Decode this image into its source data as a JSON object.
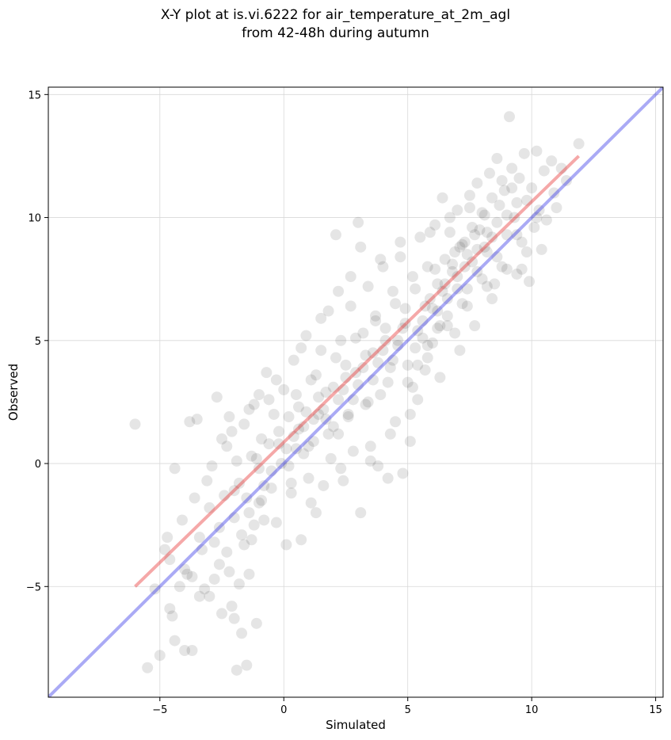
{
  "chart_data": {
    "type": "scatter",
    "title_lines": [
      "X-Y plot at is.vi.6222 for air_temperature_at_2m_agl",
      "from 42-48h during autumn"
    ],
    "xlabel": "Simulated",
    "ylabel": "Observed",
    "xlim": [
      -9.5,
      15.3
    ],
    "ylim": [
      -9.5,
      15.3
    ],
    "xticks": [
      -5,
      0,
      5,
      10,
      15
    ],
    "yticks": [
      -5,
      0,
      5,
      10,
      15
    ],
    "tick_labels": [
      "−5",
      "0",
      "5",
      "10",
      "15"
    ],
    "grid": true,
    "point_color": "#000000",
    "point_opacity": 0.1,
    "lines": [
      {
        "role": "fit",
        "color": "#e83030",
        "x": [
          -6.0,
          11.9
        ],
        "y": [
          -5.0,
          12.5
        ]
      },
      {
        "role": "one-to-one",
        "color": "#3535e8",
        "x": [
          -9.5,
          15.3
        ],
        "y": [
          -9.5,
          15.3
        ]
      }
    ],
    "points": [
      [
        -6.0,
        1.6
      ],
      [
        -5.5,
        -8.3
      ],
      [
        -5.2,
        -5.1
      ],
      [
        -5.0,
        -7.8
      ],
      [
        -4.8,
        -3.5
      ],
      [
        -4.7,
        -3.0
      ],
      [
        -4.6,
        -5.9
      ],
      [
        -4.5,
        -6.2
      ],
      [
        -4.4,
        -7.2
      ],
      [
        -4.4,
        -0.2
      ],
      [
        -4.2,
        -5.0
      ],
      [
        -4.0,
        -4.3
      ],
      [
        -4.0,
        -7.6
      ],
      [
        -3.9,
        -4.5
      ],
      [
        -3.8,
        1.7
      ],
      [
        -3.7,
        -7.6
      ],
      [
        -3.6,
        -1.4
      ],
      [
        -3.5,
        1.8
      ],
      [
        -3.4,
        -5.4
      ],
      [
        -3.3,
        -3.5
      ],
      [
        -3.2,
        -5.1
      ],
      [
        -3.1,
        -0.7
      ],
      [
        -3.0,
        -5.4
      ],
      [
        -2.9,
        -0.1
      ],
      [
        -2.8,
        -4.7
      ],
      [
        -2.6,
        -4.1
      ],
      [
        -2.5,
        1.0
      ],
      [
        -2.5,
        -6.1
      ],
      [
        -2.4,
        -1.3
      ],
      [
        -2.3,
        -3.6
      ],
      [
        -2.2,
        -4.4
      ],
      [
        -2.1,
        -5.8
      ],
      [
        -2.0,
        -6.3
      ],
      [
        -2.0,
        -2.2
      ],
      [
        -1.9,
        -8.4
      ],
      [
        -1.8,
        -4.9
      ],
      [
        -1.7,
        -6.9
      ],
      [
        -1.6,
        -3.3
      ],
      [
        -1.5,
        -8.2
      ],
      [
        -1.4,
        -4.5
      ],
      [
        -1.3,
        -3.1
      ],
      [
        -1.2,
        -2.5
      ],
      [
        -1.1,
        -6.5
      ],
      [
        -1.0,
        -1.6
      ],
      [
        -2.7,
        2.7
      ],
      [
        -2.3,
        0.7
      ],
      [
        -2.1,
        1.3
      ],
      [
        -1.9,
        0.1
      ],
      [
        -1.8,
        -0.8
      ],
      [
        -1.6,
        1.6
      ],
      [
        -1.5,
        -1.4
      ],
      [
        -1.3,
        0.3
      ],
      [
        -1.2,
        2.4
      ],
      [
        -1.0,
        -0.2
      ],
      [
        -0.9,
        1.0
      ],
      [
        -0.8,
        -2.3
      ],
      [
        -0.7,
        3.7
      ],
      [
        -0.6,
        0.8
      ],
      [
        -0.5,
        -1.0
      ],
      [
        -0.4,
        2.0
      ],
      [
        -0.3,
        -2.4
      ],
      [
        -0.2,
        1.3
      ],
      [
        -0.1,
        0.0
      ],
      [
        0.0,
        3.0
      ],
      [
        0.1,
        -3.3
      ],
      [
        0.2,
        1.9
      ],
      [
        0.3,
        -0.8
      ],
      [
        0.4,
        4.2
      ],
      [
        0.5,
        0.6
      ],
      [
        0.6,
        2.3
      ],
      [
        0.7,
        -3.1
      ],
      [
        0.8,
        1.5
      ],
      [
        0.9,
        5.2
      ],
      [
        1.0,
        -0.6
      ],
      [
        1.1,
        3.4
      ],
      [
        1.2,
        0.9
      ],
      [
        1.3,
        -2.0
      ],
      [
        1.4,
        2.7
      ],
      [
        1.5,
        4.6
      ],
      [
        1.6,
        -0.9
      ],
      [
        1.7,
        1.8
      ],
      [
        1.8,
        6.2
      ],
      [
        1.9,
        0.2
      ],
      [
        2.0,
        3.1
      ],
      [
        2.1,
        9.3
      ],
      [
        2.2,
        1.2
      ],
      [
        2.3,
        5.0
      ],
      [
        2.4,
        -0.7
      ],
      [
        2.5,
        4.0
      ],
      [
        2.6,
        2.0
      ],
      [
        2.7,
        6.4
      ],
      [
        2.8,
        0.5
      ],
      [
        2.9,
        3.7
      ],
      [
        3.0,
        9.8
      ],
      [
        3.1,
        -2.0
      ],
      [
        3.2,
        5.3
      ],
      [
        3.3,
        2.4
      ],
      [
        3.4,
        7.2
      ],
      [
        3.5,
        0.7
      ],
      [
        3.6,
        4.5
      ],
      [
        3.7,
        6.0
      ],
      [
        3.8,
        -0.1
      ],
      [
        3.9,
        2.8
      ],
      [
        4.0,
        8.0
      ],
      [
        4.1,
        5.5
      ],
      [
        4.2,
        -0.6
      ],
      [
        4.3,
        3.9
      ],
      [
        4.4,
        7.0
      ],
      [
        4.5,
        1.7
      ],
      [
        4.6,
        5.0
      ],
      [
        4.7,
        8.4
      ],
      [
        4.8,
        -0.4
      ],
      [
        4.9,
        6.3
      ],
      [
        5.0,
        3.3
      ],
      [
        5.1,
        0.9
      ],
      [
        5.2,
        7.6
      ],
      [
        5.3,
        4.7
      ],
      [
        5.4,
        2.6
      ],
      [
        5.5,
        9.2
      ],
      [
        5.6,
        5.8
      ],
      [
        5.7,
        3.8
      ],
      [
        5.8,
        8.0
      ],
      [
        5.9,
        6.7
      ],
      [
        6.0,
        4.9
      ],
      [
        6.1,
        9.7
      ],
      [
        6.2,
        7.3
      ],
      [
        6.3,
        5.6
      ],
      [
        6.4,
        10.8
      ],
      [
        6.5,
        8.3
      ],
      [
        6.6,
        6.0
      ],
      [
        6.7,
        9.4
      ],
      [
        6.8,
        7.8
      ],
      [
        6.9,
        5.3
      ],
      [
        7.0,
        10.3
      ],
      [
        7.1,
        8.8
      ],
      [
        7.2,
        6.5
      ],
      [
        7.3,
        9.0
      ],
      [
        7.4,
        7.1
      ],
      [
        7.5,
        10.9
      ],
      [
        7.6,
        8.2
      ],
      [
        7.7,
        5.6
      ],
      [
        7.8,
        11.4
      ],
      [
        7.9,
        9.5
      ],
      [
        8.0,
        7.5
      ],
      [
        8.1,
        10.1
      ],
      [
        8.2,
        8.6
      ],
      [
        8.3,
        11.8
      ],
      [
        8.4,
        9.2
      ],
      [
        8.5,
        7.3
      ],
      [
        8.6,
        12.4
      ],
      [
        8.7,
        10.5
      ],
      [
        8.8,
        8.0
      ],
      [
        8.9,
        11.1
      ],
      [
        9.0,
        9.3
      ],
      [
        9.1,
        14.1
      ],
      [
        9.2,
        12.0
      ],
      [
        9.3,
        10.0
      ],
      [
        9.4,
        7.7
      ],
      [
        9.5,
        11.6
      ],
      [
        9.6,
        9.0
      ],
      [
        9.7,
        12.6
      ],
      [
        9.8,
        10.7
      ],
      [
        9.9,
        7.4
      ],
      [
        10.0,
        11.2
      ],
      [
        10.1,
        9.6
      ],
      [
        10.2,
        12.7
      ],
      [
        10.3,
        10.3
      ],
      [
        10.4,
        8.7
      ],
      [
        10.5,
        11.9
      ],
      [
        10.6,
        9.9
      ],
      [
        10.8,
        12.3
      ],
      [
        10.9,
        11.0
      ],
      [
        11.0,
        10.4
      ],
      [
        11.2,
        12.0
      ],
      [
        11.4,
        11.5
      ],
      [
        11.9,
        13.0
      ],
      [
        5.2,
        3.1
      ],
      [
        5.4,
        4.0
      ],
      [
        5.6,
        5.1
      ],
      [
        5.8,
        4.3
      ],
      [
        6.0,
        6.3
      ],
      [
        6.2,
        5.5
      ],
      [
        6.4,
        7.0
      ],
      [
        6.6,
        6.7
      ],
      [
        6.8,
        8.1
      ],
      [
        7.0,
        7.6
      ],
      [
        7.2,
        8.9
      ],
      [
        7.4,
        8.5
      ],
      [
        7.6,
        9.6
      ],
      [
        7.8,
        8.7
      ],
      [
        8.0,
        10.2
      ],
      [
        8.2,
        9.4
      ],
      [
        8.4,
        10.8
      ],
      [
        8.6,
        9.8
      ],
      [
        8.8,
        11.5
      ],
      [
        9.0,
        10.1
      ],
      [
        9.2,
        11.2
      ],
      [
        9.4,
        10.6
      ],
      [
        0.4,
        1.1
      ],
      [
        0.8,
        0.4
      ],
      [
        1.2,
        1.8
      ],
      [
        1.6,
        2.2
      ],
      [
        2.0,
        1.5
      ],
      [
        2.4,
        3.0
      ],
      [
        2.8,
        2.6
      ],
      [
        3.2,
        3.9
      ],
      [
        3.6,
        3.4
      ],
      [
        4.0,
        4.6
      ],
      [
        4.4,
        4.2
      ],
      [
        4.8,
        5.5
      ],
      [
        0.1,
        0.6
      ],
      [
        0.5,
        2.8
      ],
      [
        0.9,
        2.1
      ],
      [
        1.3,
        3.6
      ],
      [
        1.7,
        2.9
      ],
      [
        2.1,
        4.3
      ],
      [
        2.5,
        3.5
      ],
      [
        2.9,
        5.1
      ],
      [
        3.3,
        4.4
      ],
      [
        3.7,
        5.8
      ],
      [
        4.1,
        5.0
      ],
      [
        4.5,
        6.5
      ],
      [
        4.9,
        5.7
      ],
      [
        5.3,
        7.1
      ],
      [
        5.7,
        6.4
      ],
      [
        6.1,
        7.9
      ],
      [
        6.5,
        7.3
      ],
      [
        6.9,
        8.6
      ],
      [
        7.3,
        8.0
      ],
      [
        7.7,
        9.3
      ],
      [
        8.1,
        8.8
      ],
      [
        -0.5,
        -0.3
      ],
      [
        -0.2,
        0.8
      ],
      [
        0.2,
        -0.1
      ],
      [
        0.6,
        1.4
      ],
      [
        1.0,
        0.7
      ],
      [
        1.4,
        2.0
      ],
      [
        1.8,
        1.2
      ],
      [
        2.2,
        2.6
      ],
      [
        2.6,
        1.9
      ],
      [
        3.0,
        3.2
      ],
      [
        3.4,
        2.5
      ],
      [
        3.8,
        4.1
      ],
      [
        4.2,
        3.3
      ],
      [
        4.6,
        4.8
      ],
      [
        5.0,
        4.0
      ],
      [
        5.4,
        5.4
      ],
      [
        5.8,
        4.8
      ],
      [
        6.2,
        6.2
      ],
      [
        6.6,
        5.6
      ],
      [
        7.0,
        7.1
      ],
      [
        7.4,
        6.4
      ],
      [
        7.8,
        7.8
      ],
      [
        8.2,
        7.2
      ],
      [
        8.6,
        8.4
      ],
      [
        9.0,
        7.9
      ],
      [
        9.4,
        9.3
      ],
      [
        9.8,
        8.6
      ],
      [
        10.2,
        10.0
      ],
      [
        -1.1,
        0.2
      ],
      [
        -0.8,
        -0.9
      ],
      [
        -1.4,
        -2.0
      ],
      [
        -2.0,
        -1.1
      ],
      [
        -2.6,
        -2.6
      ],
      [
        -3.0,
        -1.8
      ],
      [
        -3.4,
        -3.0
      ],
      [
        -4.1,
        -2.3
      ],
      [
        -4.6,
        -3.9
      ],
      [
        -3.7,
        -4.6
      ],
      [
        -2.8,
        -3.2
      ],
      [
        -1.7,
        -2.9
      ],
      [
        -0.9,
        -1.5
      ],
      [
        0.3,
        -1.2
      ],
      [
        1.1,
        -1.6
      ],
      [
        2.3,
        -0.2
      ],
      [
        3.5,
        0.1
      ],
      [
        4.3,
        1.2
      ],
      [
        5.1,
        2.0
      ],
      [
        6.3,
        3.5
      ],
      [
        7.1,
        4.6
      ],
      [
        8.4,
        6.7
      ],
      [
        9.6,
        7.9
      ],
      [
        2.7,
        7.6
      ],
      [
        3.9,
        8.3
      ],
      [
        4.7,
        9.0
      ],
      [
        5.9,
        9.4
      ],
      [
        6.7,
        10.0
      ],
      [
        7.5,
        10.4
      ],
      [
        1.5,
        5.9
      ],
      [
        0.7,
        4.7
      ],
      [
        -0.3,
        3.4
      ],
      [
        -0.6,
        2.6
      ],
      [
        -1.0,
        2.8
      ],
      [
        -1.4,
        2.2
      ],
      [
        -2.2,
        1.9
      ],
      [
        2.2,
        7.0
      ],
      [
        3.1,
        8.8
      ]
    ]
  }
}
